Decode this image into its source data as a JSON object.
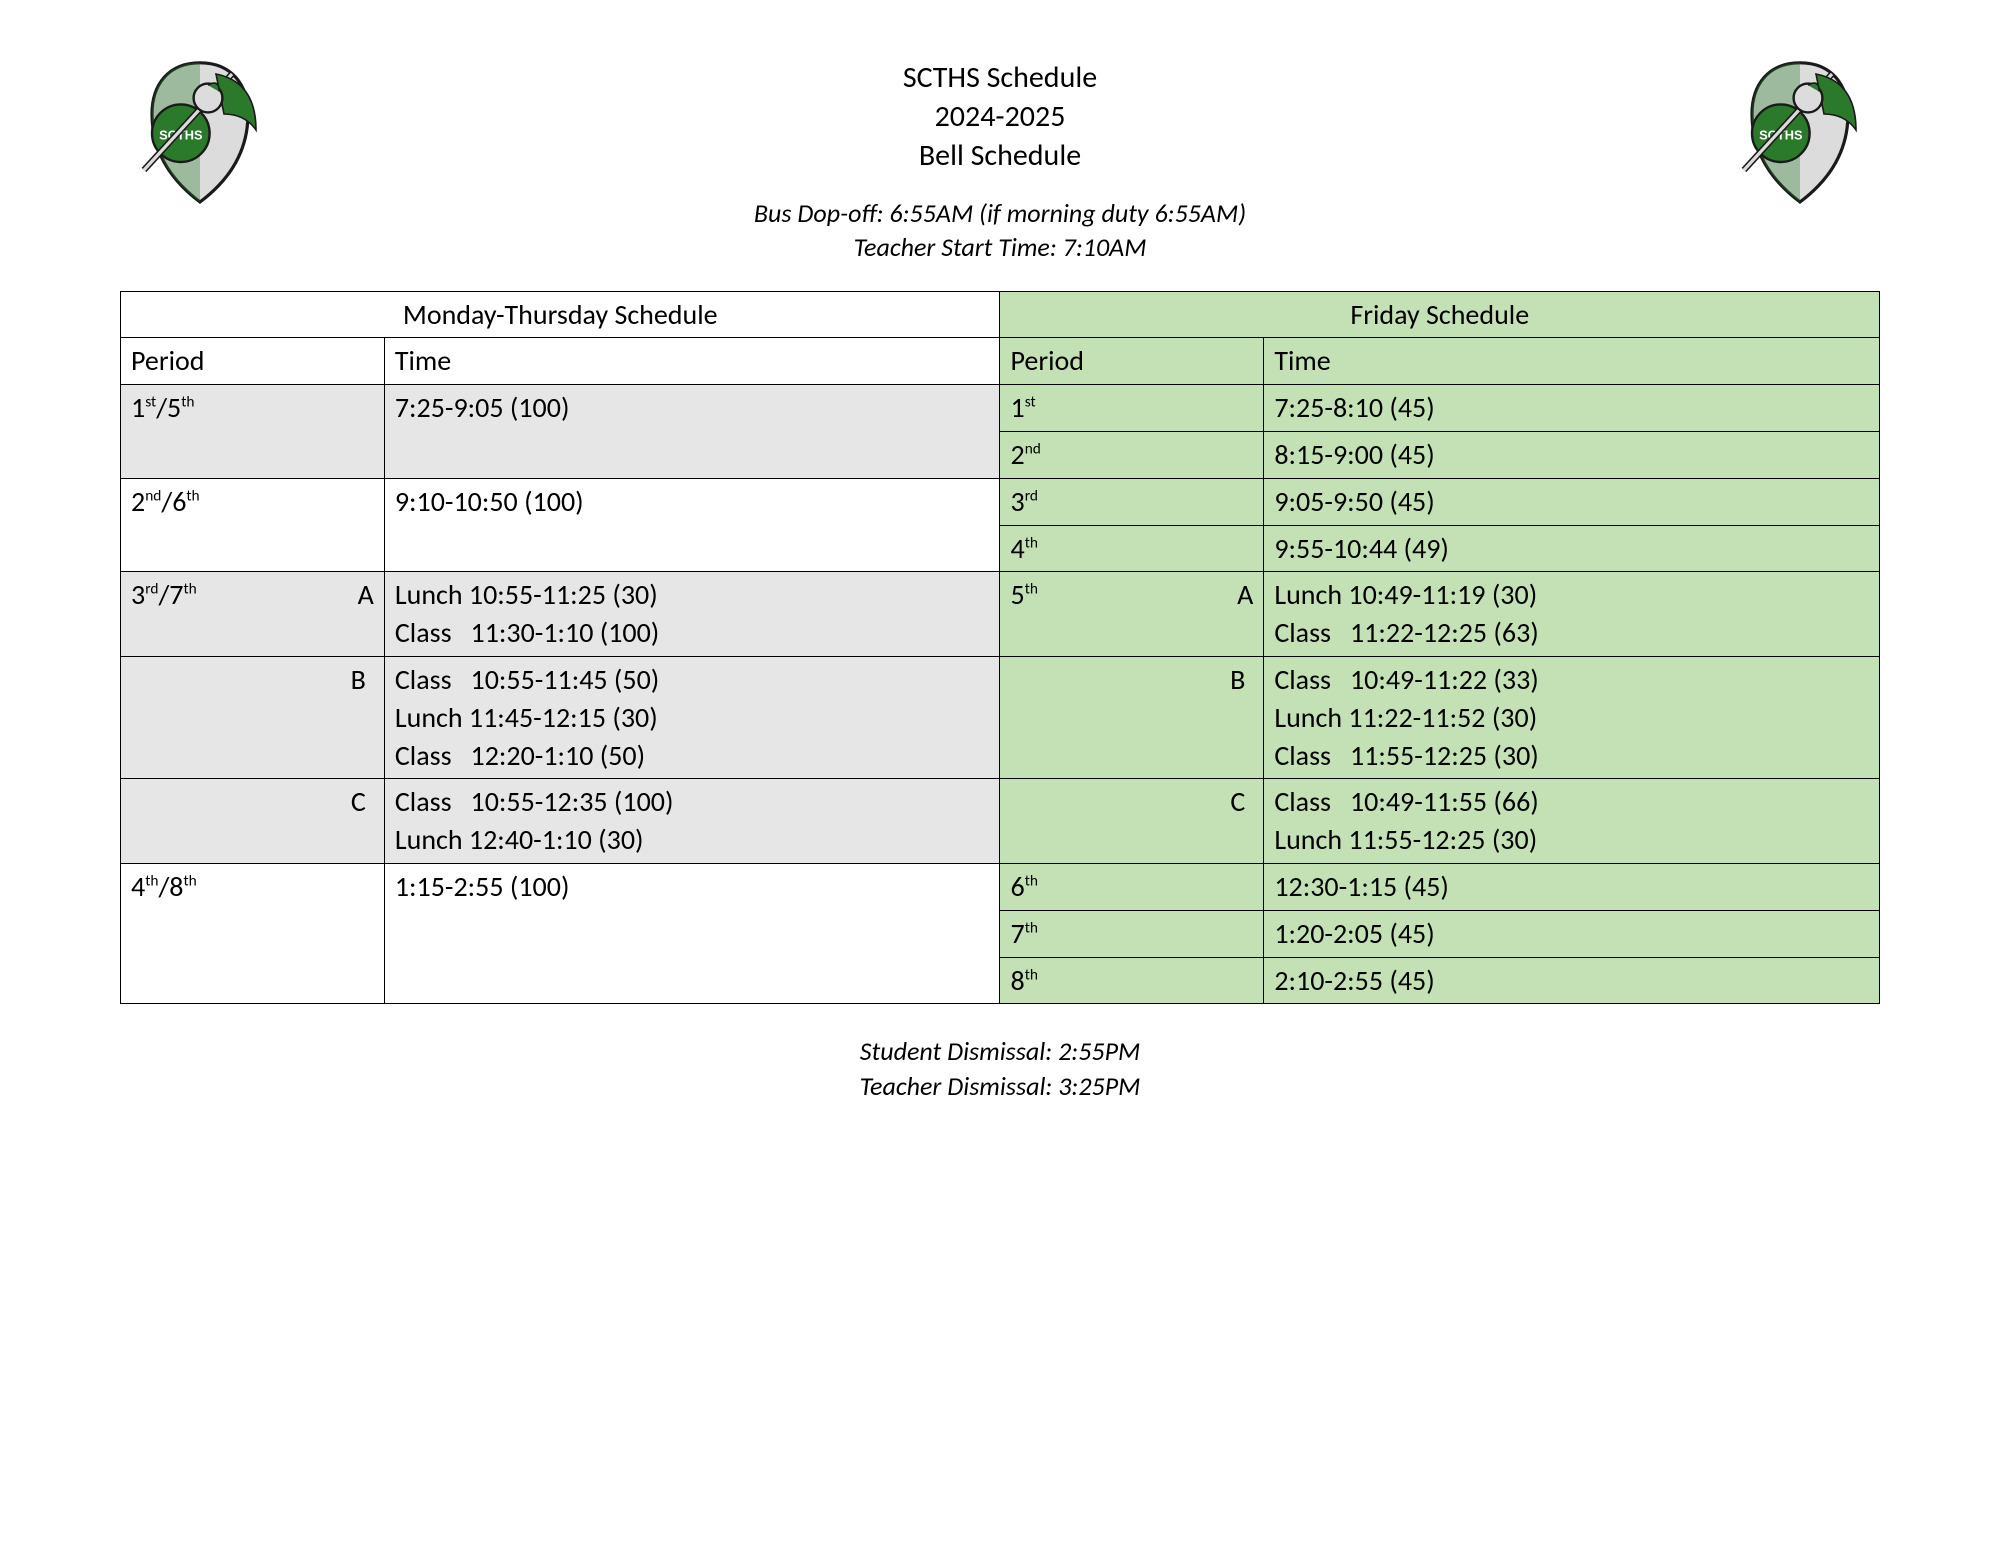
{
  "colors": {
    "green_bg": "#c4e0b5",
    "gray_bg": "#e6e6e6",
    "white_bg": "#ffffff",
    "border": "#000000",
    "text": "#000000",
    "logo_green": "#2b7a2b",
    "logo_dark": "#1a1a1a",
    "logo_light": "#dcdcdc"
  },
  "typography": {
    "body_family": "Calibri, Arial, sans-serif",
    "title_pt": 30,
    "body_pt": 26,
    "table_pt": 28
  },
  "title": {
    "line1": "SCTHS Schedule",
    "line2": "2024-2025",
    "line3": "Bell Schedule"
  },
  "subtitle": {
    "line1": "Bus Dop-off: 6:55AM (if morning duty 6:55AM)",
    "line2": "Teacher Start Time: 7:10AM"
  },
  "logo_text": "SCTHS",
  "table": {
    "headers": {
      "mon_thu": "Monday-Thursday Schedule",
      "fri": "Friday Schedule",
      "period": "Period",
      "time": "Time"
    },
    "rows": [
      {
        "mt_period_html": "1<sup>st</sup>/5<sup>th</sup>",
        "mt_time": "7:25-9:05 (100)",
        "mt_rowspan": 2,
        "mt_shade": "gray",
        "f_period_html": "1<sup>st</sup>",
        "f_time": "7:25-8:10 (45)"
      },
      {
        "f_period_html": "2<sup>nd</sup>",
        "f_time": "8:15-9:00 (45)"
      },
      {
        "mt_period_html": "2<sup>nd</sup>/6<sup>th</sup>",
        "mt_time": "9:10-10:50 (100)",
        "mt_rowspan": 2,
        "mt_shade": "white",
        "f_period_html": "3<sup>rd</sup>",
        "f_time": "9:05-9:50 (45)"
      },
      {
        "f_period_html": "4<sup>th</sup>",
        "f_time": "9:55-10:44 (49)"
      },
      {
        "mt_period_html": "3<sup>rd</sup>/7<sup>th</sup>",
        "mt_period_suffix": "A",
        "mt_time_lines": [
          "Lunch 10:55-11:25 (30)",
          "Class   11:30-1:10 (100)"
        ],
        "mt_shade": "gray",
        "f_period_html": "5<sup>th</sup>",
        "f_period_suffix": "A",
        "f_time_lines": [
          "Lunch 10:49-11:19 (30)",
          "Class   11:22-12:25 (63)"
        ]
      },
      {
        "mt_period_suffix_only": "B",
        "mt_time_lines": [
          "Class   10:55-11:45 (50)",
          "Lunch 11:45-12:15 (30)",
          "Class   12:20-1:10 (50)"
        ],
        "mt_shade": "gray",
        "f_period_suffix_only": "B",
        "f_time_lines": [
          "Class   10:49-11:22 (33)",
          "Lunch 11:22-11:52 (30)",
          "Class   11:55-12:25 (30)"
        ]
      },
      {
        "mt_period_suffix_only": "C",
        "mt_time_lines": [
          "Class   10:55-12:35 (100)",
          "Lunch 12:40-1:10 (30)"
        ],
        "mt_shade": "gray",
        "f_period_suffix_only": "C",
        "f_time_lines": [
          "Class   10:49-11:55 (66)",
          "Lunch 11:55-12:25 (30)"
        ]
      },
      {
        "mt_period_html": "4<sup>th</sup>/8<sup>th</sup>",
        "mt_time": "1:15-2:55 (100)",
        "mt_rowspan": 3,
        "mt_shade": "white",
        "f_period_html": "6<sup>th</sup>",
        "f_time": "12:30-1:15 (45)"
      },
      {
        "f_period_html": "7<sup>th</sup>",
        "f_time": "1:20-2:05 (45)"
      },
      {
        "f_period_html": "8<sup>th</sup>",
        "f_time": "2:10-2:55 (45)"
      }
    ]
  },
  "footer": {
    "line1": "Student Dismissal: 2:55PM",
    "line2": "Teacher Dismissal: 3:25PM"
  }
}
